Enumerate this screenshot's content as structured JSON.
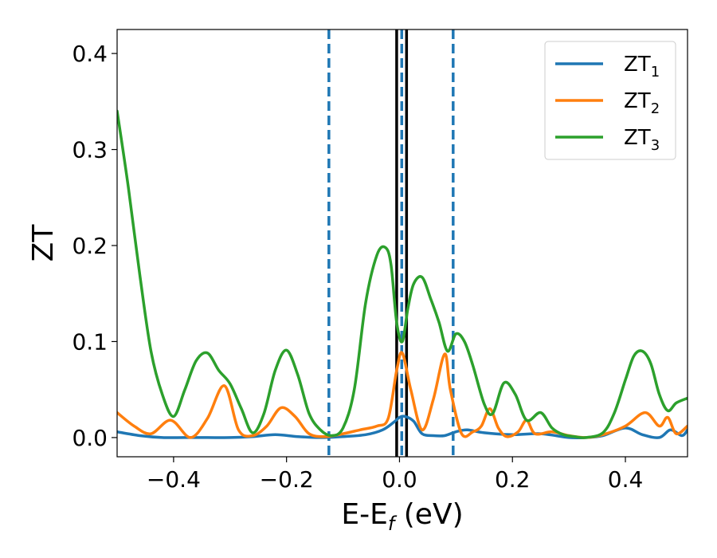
{
  "chart_data": {
    "type": "line",
    "xlabel": "E-E",
    "xlabel_sub": "f",
    "xlabel_suffix": " (eV)",
    "ylabel": "ZT",
    "xlim": [
      -0.5,
      0.51
    ],
    "ylim": [
      -0.02,
      0.425
    ],
    "xticks": [
      -0.4,
      -0.2,
      0.0,
      0.2,
      0.4
    ],
    "xtick_labels": [
      "−0.4",
      "−0.2",
      "0.0",
      "0.2",
      "0.4"
    ],
    "yticks": [
      0.0,
      0.1,
      0.2,
      0.3,
      0.4
    ],
    "ytick_labels": [
      "0.0",
      "0.1",
      "0.2",
      "0.3",
      "0.4"
    ],
    "grid": false,
    "legend_position": "top-right",
    "vlines": [
      {
        "x": -0.125,
        "style": "dashed",
        "color": "#1f77b4"
      },
      {
        "x": 0.095,
        "style": "dashed",
        "color": "#1f77b4"
      },
      {
        "x": -0.005,
        "style": "solid",
        "color": "#000000"
      },
      {
        "x": 0.0125,
        "style": "solid",
        "color": "#000000"
      },
      {
        "x": 0.004,
        "style": "dashed",
        "color": "#1f77b4"
      }
    ],
    "series": [
      {
        "name": "ZT",
        "name_sub": "1",
        "color": "#1f77b4",
        "x": [
          -0.5,
          -0.46,
          -0.42,
          -0.38,
          -0.34,
          -0.3,
          -0.26,
          -0.22,
          -0.18,
          -0.14,
          -0.1,
          -0.06,
          -0.03,
          -0.01,
          0.0,
          0.01,
          0.025,
          0.04,
          0.06,
          0.08,
          0.1,
          0.12,
          0.15,
          0.2,
          0.25,
          0.3,
          0.33,
          0.36,
          0.4,
          0.43,
          0.46,
          0.48,
          0.5,
          0.51
        ],
        "values": [
          0.006,
          0.002,
          0.0,
          0.0,
          0.0,
          0.0,
          0.001,
          0.003,
          0.001,
          0.0,
          0.001,
          0.003,
          0.008,
          0.016,
          0.021,
          0.022,
          0.017,
          0.004,
          0.002,
          0.002,
          0.006,
          0.008,
          0.005,
          0.003,
          0.004,
          0.0,
          0.0,
          0.002,
          0.01,
          0.003,
          0.0,
          0.008,
          0.002,
          0.008
        ]
      },
      {
        "name": "ZT",
        "name_sub": "2",
        "color": "#ff7f0e",
        "x": [
          -0.5,
          -0.47,
          -0.44,
          -0.405,
          -0.37,
          -0.34,
          -0.31,
          -0.285,
          -0.26,
          -0.235,
          -0.21,
          -0.185,
          -0.16,
          -0.13,
          -0.1,
          -0.07,
          -0.04,
          -0.02,
          -0.005,
          0.005,
          0.02,
          0.04,
          0.06,
          0.08,
          0.09,
          0.11,
          0.13,
          0.145,
          0.16,
          0.175,
          0.19,
          0.21,
          0.225,
          0.24,
          0.27,
          0.3,
          0.33,
          0.36,
          0.4,
          0.435,
          0.46,
          0.475,
          0.49,
          0.51
        ],
        "values": [
          0.026,
          0.012,
          0.004,
          0.018,
          0.0,
          0.02,
          0.054,
          0.008,
          0.002,
          0.012,
          0.031,
          0.022,
          0.004,
          0.001,
          0.004,
          0.008,
          0.012,
          0.02,
          0.07,
          0.088,
          0.05,
          0.008,
          0.04,
          0.087,
          0.05,
          0.004,
          0.006,
          0.012,
          0.03,
          0.01,
          0.001,
          0.006,
          0.018,
          0.004,
          0.006,
          0.002,
          0.0,
          0.003,
          0.012,
          0.026,
          0.012,
          0.021,
          0.004,
          0.012
        ]
      },
      {
        "name": "ZT",
        "name_sub": "3",
        "color": "#2ca02c",
        "x": [
          -0.5,
          -0.48,
          -0.46,
          -0.44,
          -0.42,
          -0.4,
          -0.38,
          -0.36,
          -0.34,
          -0.32,
          -0.3,
          -0.28,
          -0.26,
          -0.24,
          -0.22,
          -0.2,
          -0.18,
          -0.16,
          -0.14,
          -0.12,
          -0.1,
          -0.08,
          -0.06,
          -0.04,
          -0.025,
          -0.015,
          -0.005,
          0.005,
          0.015,
          0.025,
          0.04,
          0.055,
          0.07,
          0.085,
          0.1,
          0.115,
          0.13,
          0.15,
          0.165,
          0.185,
          0.205,
          0.225,
          0.25,
          0.27,
          0.29,
          0.31,
          0.33,
          0.36,
          0.38,
          0.4,
          0.415,
          0.43,
          0.445,
          0.46,
          0.475,
          0.49,
          0.51
        ],
        "values": [
          0.34,
          0.26,
          0.17,
          0.09,
          0.045,
          0.022,
          0.05,
          0.08,
          0.088,
          0.07,
          0.056,
          0.03,
          0.005,
          0.025,
          0.07,
          0.091,
          0.065,
          0.025,
          0.008,
          0.002,
          0.01,
          0.05,
          0.14,
          0.19,
          0.198,
          0.18,
          0.12,
          0.1,
          0.135,
          0.16,
          0.167,
          0.145,
          0.12,
          0.09,
          0.108,
          0.1,
          0.075,
          0.035,
          0.025,
          0.057,
          0.045,
          0.018,
          0.026,
          0.01,
          0.003,
          0.001,
          0.0,
          0.005,
          0.025,
          0.06,
          0.085,
          0.09,
          0.077,
          0.045,
          0.028,
          0.036,
          0.041
        ]
      }
    ]
  }
}
